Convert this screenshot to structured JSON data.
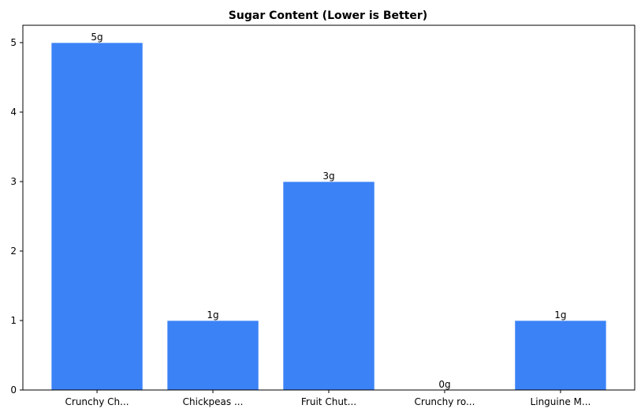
{
  "chart_data": {
    "type": "bar",
    "title": "Sugar Content (Lower is Better)",
    "xlabel": "",
    "ylabel": "",
    "categories": [
      "Crunchy Ch...",
      "Chickpeas ...",
      "Fruit Chut...",
      "Crunchy ro...",
      "Linguine M..."
    ],
    "values": [
      5,
      1,
      3,
      0,
      1
    ],
    "data_labels": [
      "5g",
      "1g",
      "3g",
      "0g",
      "1g"
    ],
    "yticks": [
      0,
      1,
      2,
      3,
      4,
      5
    ],
    "ylim": [
      0,
      5.25
    ],
    "grid": false,
    "bar_color": "#3b82f6",
    "edge_color": "#ffffff"
  }
}
